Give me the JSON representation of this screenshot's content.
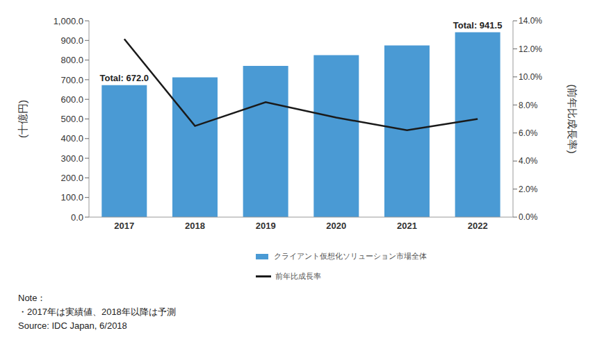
{
  "chart_data": {
    "type": "bar",
    "categories": [
      "2017",
      "2018",
      "2019",
      "2020",
      "2021",
      "2022"
    ],
    "series": [
      {
        "name": "クライアント仮想化ソリューション市場全体",
        "type": "bar",
        "color": "#4a9ad4",
        "values": [
          672.0,
          712.0,
          770.0,
          825.0,
          875.0,
          941.5
        ]
      },
      {
        "name": "前年比成長率",
        "type": "line",
        "axis": "y2",
        "color": "#1a1a1a",
        "marker": "none",
        "line_style": "solid",
        "values": [
          12.7,
          6.5,
          8.2,
          7.1,
          6.2,
          7.0
        ]
      }
    ],
    "ylabel": "(十億円)",
    "y2label": "(前年比成長率)",
    "ylim": [
      0,
      1000
    ],
    "yticks": [
      {
        "value": 0,
        "label": "0.0"
      },
      {
        "value": 100,
        "label": "100.0"
      },
      {
        "value": 200,
        "label": "200.0"
      },
      {
        "value": 300,
        "label": "300.0"
      },
      {
        "value": 400,
        "label": "400.0"
      },
      {
        "value": 500,
        "label": "500.0"
      },
      {
        "value": 600,
        "label": "600.0"
      },
      {
        "value": 700,
        "label": "700.0"
      },
      {
        "value": 800,
        "label": "800.0"
      },
      {
        "value": 900,
        "label": "900.0"
      },
      {
        "value": 1000,
        "label": "1,000.0"
      }
    ],
    "y2lim": [
      0,
      14
    ],
    "y2ticks": [
      {
        "value": 0,
        "label": "0.0%"
      },
      {
        "value": 2,
        "label": "2.0%"
      },
      {
        "value": 4,
        "label": "4.0%"
      },
      {
        "value": 6,
        "label": "6.0%"
      },
      {
        "value": 8,
        "label": "8.0%"
      },
      {
        "value": 10,
        "label": "10.0%"
      },
      {
        "value": 12,
        "label": "12.0%"
      },
      {
        "value": 14,
        "label": "14.0%"
      }
    ],
    "grid": false,
    "annotations": [
      {
        "category": "2017",
        "text": "Total: 672.0"
      },
      {
        "category": "2022",
        "text": "Total: 941.5"
      }
    ],
    "notes": [
      "Note：",
      "・2017年は実績値、2018年以降は予測",
      "Source: IDC Japan, 6/2018"
    ]
  }
}
